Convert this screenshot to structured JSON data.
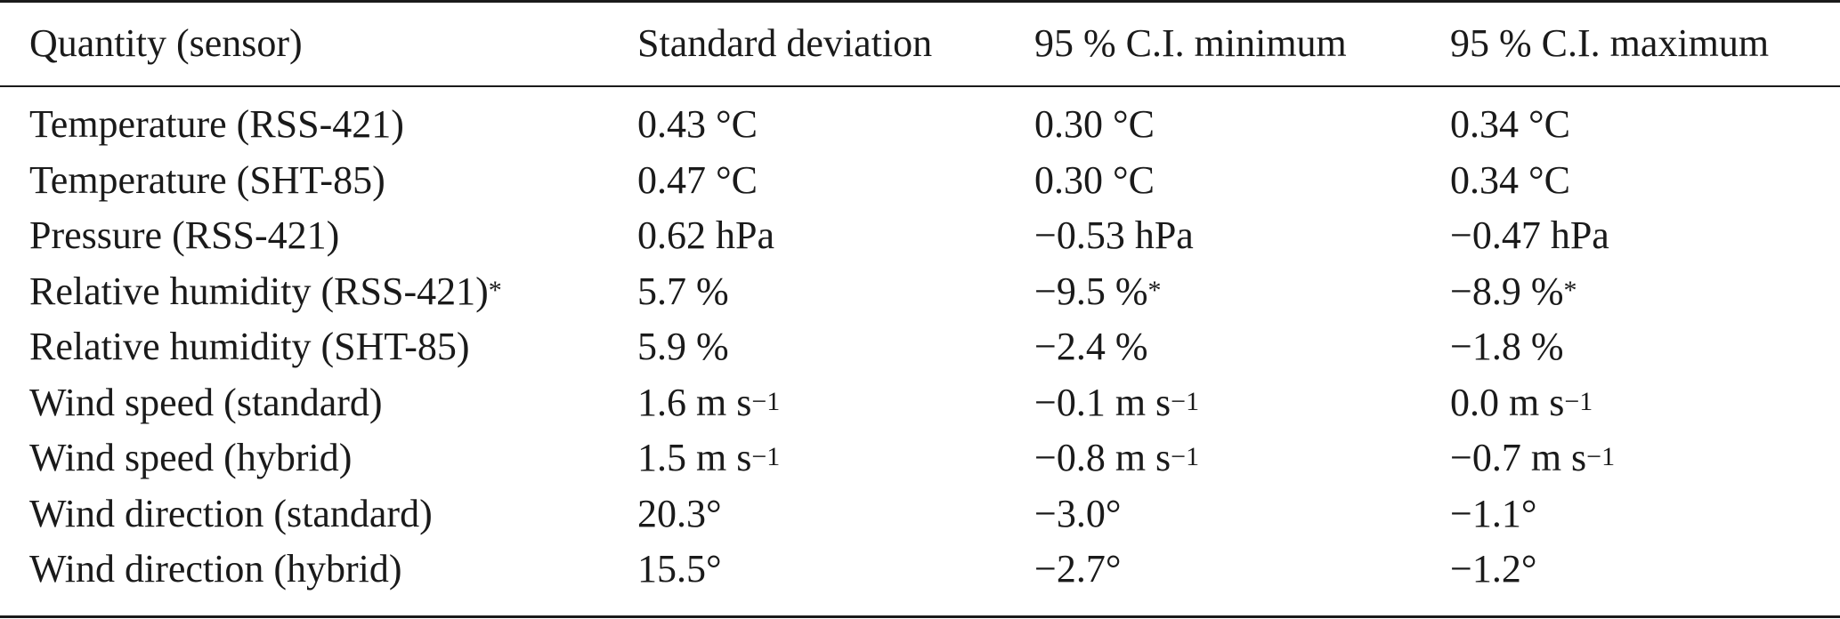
{
  "table": {
    "headers": [
      "Quantity (sensor)",
      "Standard deviation",
      "95 % C.I. minimum",
      "95 % C.I. maximum"
    ],
    "rows": [
      {
        "quantity": "Temperature (RSS-421)",
        "quantity_sup": "",
        "std": "0.43 °C",
        "std_sup": "",
        "ci_min": "0.30 °C",
        "ci_min_sup": "",
        "ci_max": "0.34 °C",
        "ci_max_sup": ""
      },
      {
        "quantity": "Temperature (SHT-85)",
        "quantity_sup": "",
        "std": "0.47 °C",
        "std_sup": "",
        "ci_min": "0.30 °C",
        "ci_min_sup": "",
        "ci_max": "0.34 °C",
        "ci_max_sup": ""
      },
      {
        "quantity": "Pressure (RSS-421)",
        "quantity_sup": "",
        "std": "0.62 hPa",
        "std_sup": "",
        "ci_min": "−0.53 hPa",
        "ci_min_sup": "",
        "ci_max": "−0.47 hPa",
        "ci_max_sup": ""
      },
      {
        "quantity": "Relative humidity (RSS-421)",
        "quantity_sup": "*",
        "std": "5.7 %",
        "std_sup": "",
        "ci_min": "−9.5 %",
        "ci_min_sup": "*",
        "ci_max": "−8.9 %",
        "ci_max_sup": "*"
      },
      {
        "quantity": "Relative humidity (SHT-85)",
        "quantity_sup": "",
        "std": "5.9 %",
        "std_sup": "",
        "ci_min": "−2.4 %",
        "ci_min_sup": "",
        "ci_max": "−1.8 %",
        "ci_max_sup": ""
      },
      {
        "quantity": "Wind speed (standard)",
        "quantity_sup": "",
        "std": "1.6 m s",
        "std_sup": "−1",
        "ci_min": "−0.1 m s",
        "ci_min_sup": "−1",
        "ci_max": "0.0 m s",
        "ci_max_sup": "−1"
      },
      {
        "quantity": "Wind speed (hybrid)",
        "quantity_sup": "",
        "std": "1.5 m s",
        "std_sup": "−1",
        "ci_min": "−0.8 m s",
        "ci_min_sup": "−1",
        "ci_max": "−0.7 m s",
        "ci_max_sup": "−1"
      },
      {
        "quantity": "Wind direction (standard)",
        "quantity_sup": "",
        "std": "20.3°",
        "std_sup": "",
        "ci_min": "−3.0°",
        "ci_min_sup": "",
        "ci_max": "−1.1°",
        "ci_max_sup": ""
      },
      {
        "quantity": "Wind direction (hybrid)",
        "quantity_sup": "",
        "std": "15.5°",
        "std_sup": "",
        "ci_min": "−2.7°",
        "ci_min_sup": "",
        "ci_max": "−1.2°",
        "ci_max_sup": ""
      }
    ]
  }
}
